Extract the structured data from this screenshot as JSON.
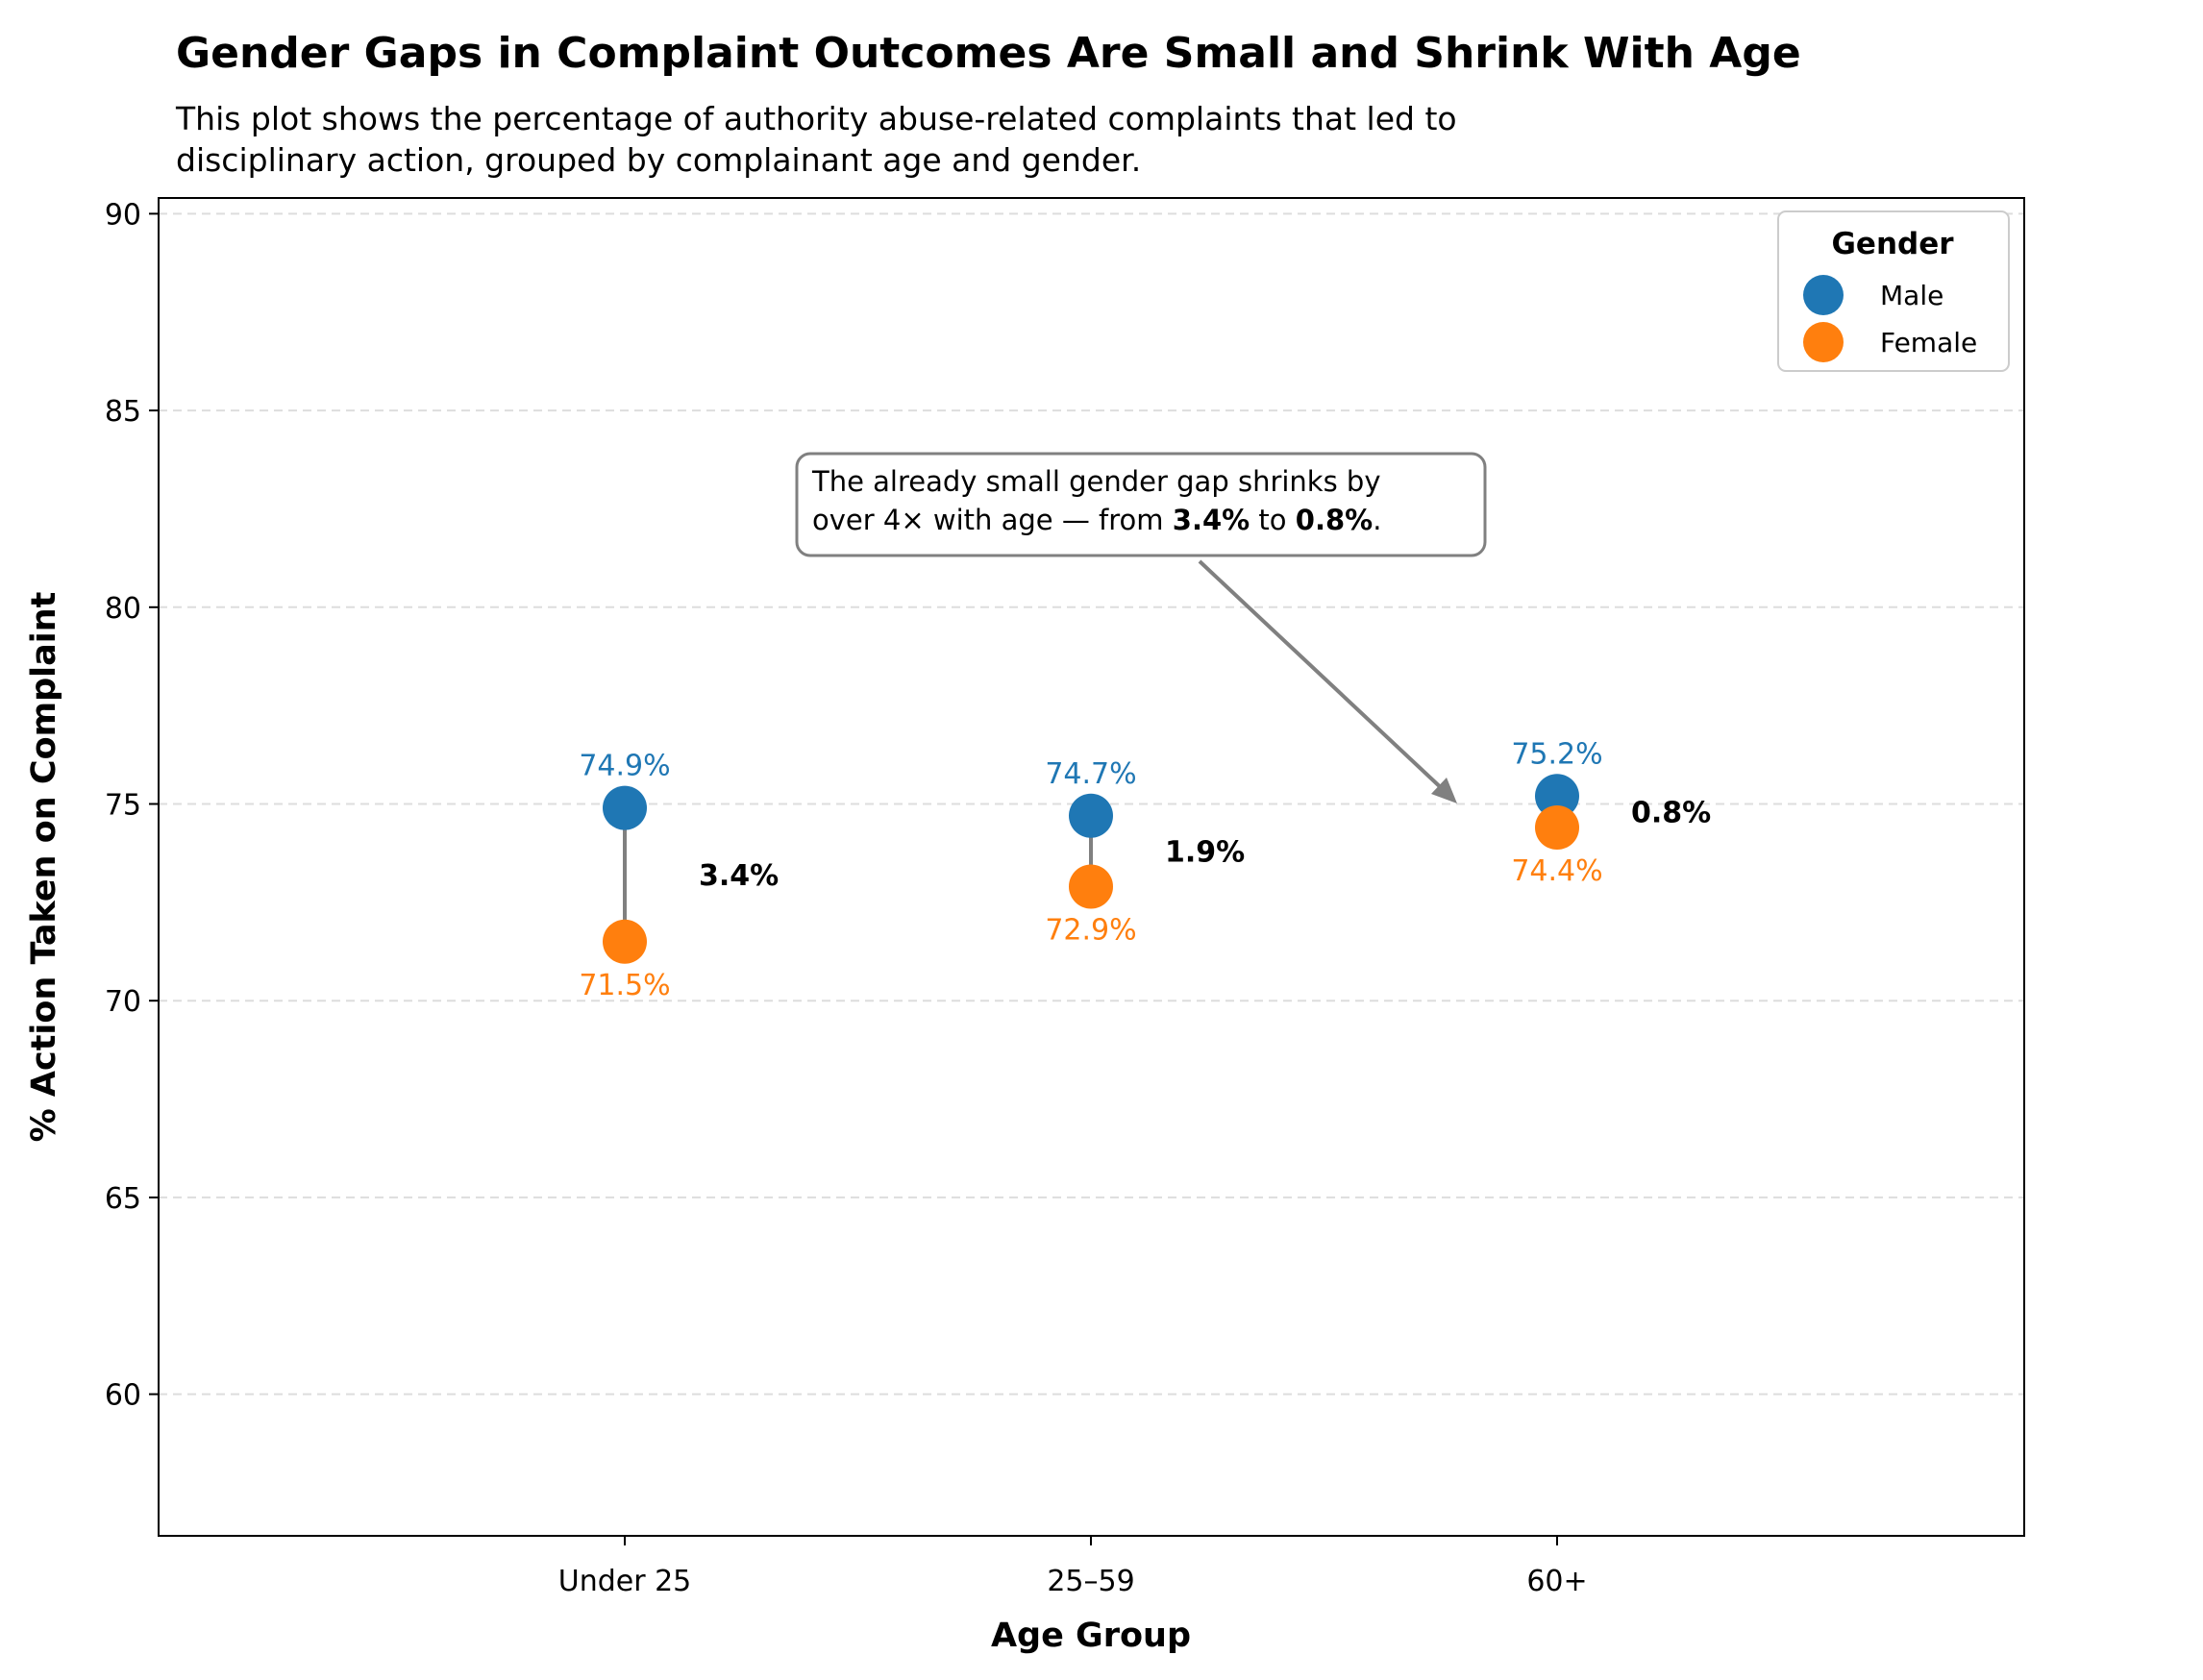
{
  "title": "Gender Gaps in Complaint Outcomes Are Small and Shrink With Age",
  "subtitle": [
    "This plot shows the percentage of authority abuse-related complaints that led to",
    "disciplinary action, grouped by complainant age and gender."
  ],
  "colors": {
    "male": "#1f77b4",
    "female": "#ff7f0e",
    "connector": "#808080",
    "grid": "#dddddd",
    "annotation": "#808080"
  },
  "chart_data": {
    "type": "scatter",
    "title": "Gender Gaps in Complaint Outcomes Are Small and Shrink With Age",
    "xlabel": "Age Group",
    "ylabel": "% Action Taken on Complaint",
    "categories": [
      "Under 25",
      "25–59",
      "60+"
    ],
    "ylim": [
      56.4,
      90.4
    ],
    "yticks": [
      60,
      65,
      70,
      75,
      80,
      85,
      90
    ],
    "grid": "horizontal dashed",
    "legend": {
      "title": "Gender",
      "placement": "top-right"
    },
    "series": [
      {
        "name": "Male",
        "values": [
          74.9,
          74.7,
          75.2
        ],
        "labels": [
          "74.9%",
          "74.7%",
          "75.2%"
        ]
      },
      {
        "name": "Female",
        "values": [
          71.5,
          72.9,
          74.4
        ],
        "labels": [
          "71.5%",
          "72.9%",
          "74.4%"
        ]
      }
    ],
    "gaps": [
      "3.4%",
      "1.9%",
      "0.8%"
    ],
    "annotation": {
      "parts": [
        [
          {
            "text": "The already small gender gap shrinks by",
            "bold": false
          }
        ],
        [
          {
            "text": "over 4× with age — from ",
            "bold": false
          },
          {
            "text": "3.4%",
            "bold": true
          },
          {
            "text": " to ",
            "bold": false
          },
          {
            "text": "0.8%",
            "bold": true
          },
          {
            "text": ".",
            "bold": false
          }
        ]
      ]
    }
  }
}
